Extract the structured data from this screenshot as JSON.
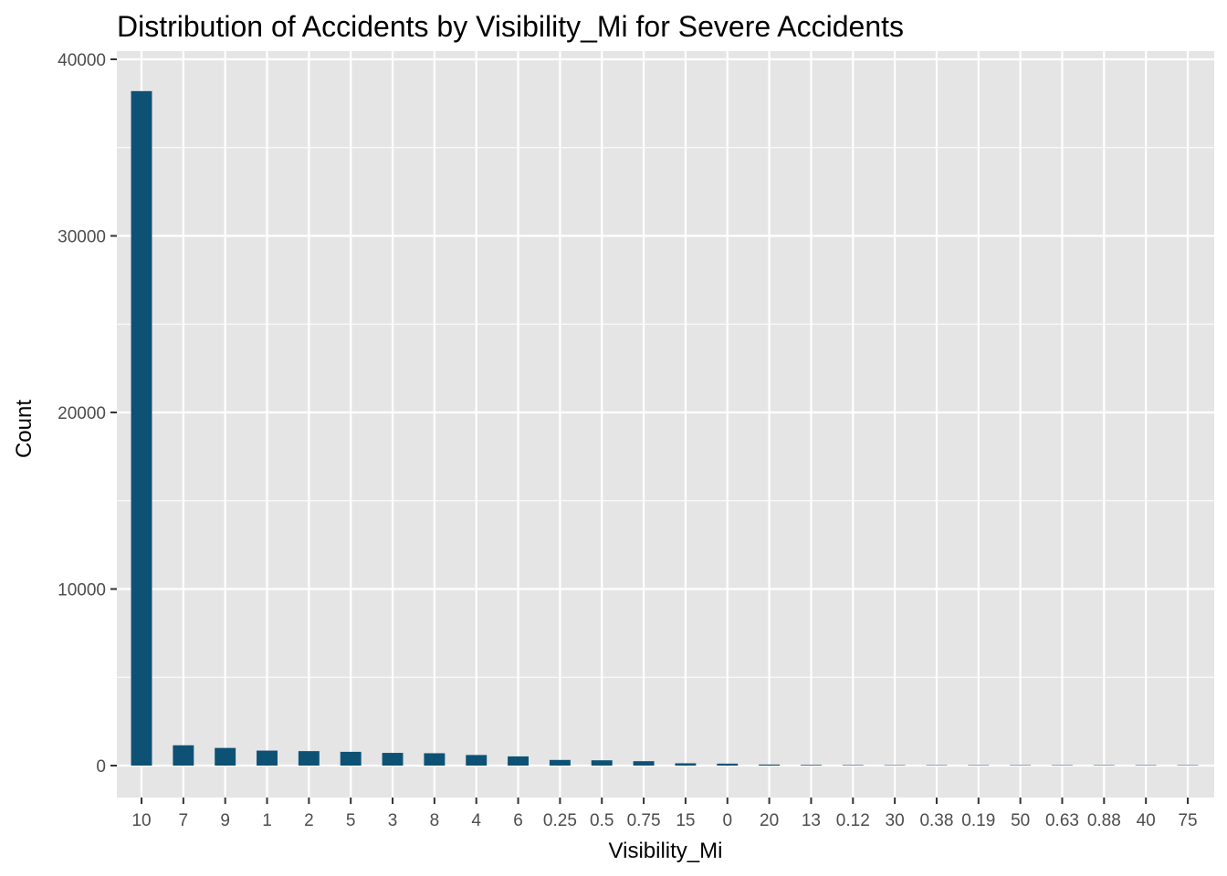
{
  "chart_data": {
    "type": "bar",
    "title": "Distribution of Accidents by Visibility_Mi for Severe Accidents",
    "xlabel": "Visibility_Mi",
    "ylabel": "Count",
    "ylim": [
      -2000,
      41000
    ],
    "yticks": [
      0,
      10000,
      20000,
      30000,
      40000
    ],
    "grid": true,
    "categories": [
      "10",
      "7",
      "9",
      "1",
      "2",
      "5",
      "3",
      "8",
      "4",
      "6",
      "0.25",
      "0.5",
      "0.75",
      "15",
      "0",
      "20",
      "13",
      "0.12",
      "30",
      "0.38",
      "0.19",
      "50",
      "0.63",
      "0.88",
      "40",
      "75"
    ],
    "values": [
      38200,
      1150,
      1000,
      850,
      820,
      780,
      720,
      700,
      600,
      520,
      320,
      300,
      250,
      130,
      110,
      60,
      40,
      30,
      20,
      15,
      12,
      10,
      8,
      6,
      5,
      4
    ],
    "colors": {
      "bar": "#0d5275",
      "panel": "#e5e5e5",
      "grid": "#ffffff"
    }
  }
}
